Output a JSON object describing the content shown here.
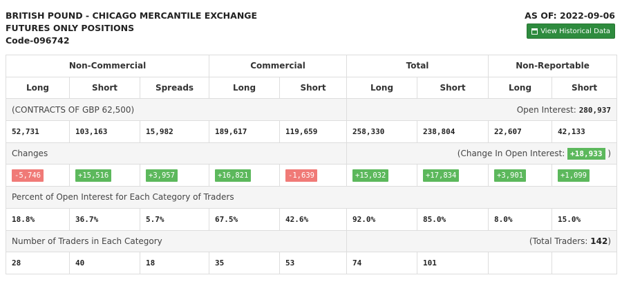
{
  "header": {
    "title_line1": "BRITISH POUND - CHICAGO MERCANTILE EXCHANGE",
    "title_line2": "FUTURES ONLY POSITIONS",
    "code": "Code-096742",
    "as_of": "AS OF: 2022-09-06",
    "history_button": "View Historical Data",
    "accent_color": "#2e8b3e"
  },
  "groups": [
    "Non-Commercial",
    "Commercial",
    "Total",
    "Non-Reportable"
  ],
  "columns": [
    "Long",
    "Short",
    "Spreads",
    "Long",
    "Short",
    "Long",
    "Short",
    "Long",
    "Short"
  ],
  "contracts": {
    "label": "(CONTRACTS OF GBP 62,500)",
    "oi_label": "Open Interest:",
    "oi_value": "280,937",
    "values": [
      "52,731",
      "103,163",
      "15,982",
      "189,617",
      "119,659",
      "258,330",
      "238,804",
      "22,607",
      "42,133"
    ]
  },
  "changes": {
    "label": "Changes",
    "oi_label_prefix": "(Change In Open Interest:",
    "oi_value": "+18,933",
    "oi_label_suffix": ")",
    "values": [
      "-5,746",
      "+15,516",
      "+3,957",
      "+16,821",
      "-1,639",
      "+15,032",
      "+17,834",
      "+3,901",
      "+1,099"
    ],
    "positive_color": "#5cb85c",
    "negative_color": "#f07a77"
  },
  "percent": {
    "label": "Percent of Open Interest for Each Category of Traders",
    "values": [
      "18.8%",
      "36.7%",
      "5.7%",
      "67.5%",
      "42.6%",
      "92.0%",
      "85.0%",
      "8.0%",
      "15.0%"
    ]
  },
  "traders": {
    "label": "Number of Traders in Each Category",
    "total_prefix": "(Total Traders:",
    "total_value": "142",
    "total_suffix": ")",
    "values": [
      "28",
      "40",
      "18",
      "35",
      "53",
      "74",
      "101",
      "",
      ""
    ]
  }
}
